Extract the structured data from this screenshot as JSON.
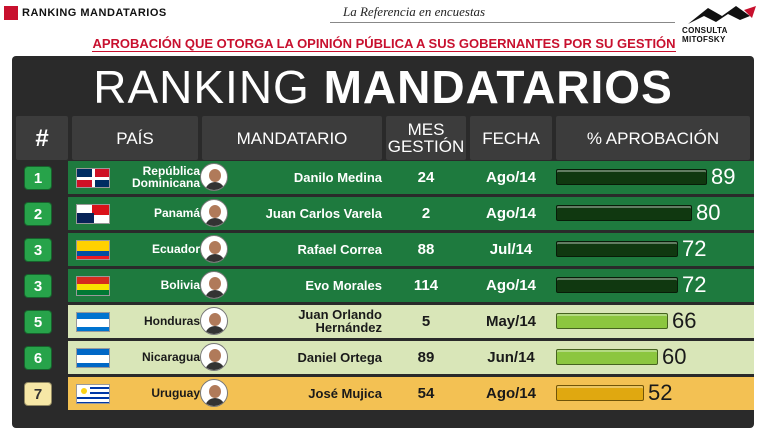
{
  "header": {
    "brand": "RANKING MANDATARIOS",
    "tagline": "La Referencia en encuestas",
    "logo_text": "CONSULTA MITOFSKY",
    "subtitle": "APROBACIÓN QUE OTORGA LA OPINIÓN PÚBLICA A SUS GOBERNANTES POR SU GESTIÓN"
  },
  "title": {
    "light": "RANKING",
    "bold": "MANDATARIOS"
  },
  "columns": {
    "rank": "#",
    "country": "PAÍS",
    "leader": "MANDATARIO",
    "tenure_line1": "MES",
    "tenure_line2": "GESTIÓN",
    "date": "FECHA",
    "approval": "% APROBACIÓN"
  },
  "colors": {
    "dark_green_row": "#1e7a3e",
    "light_green_row": "#d9e6b8",
    "orange_row": "#f3c153",
    "bar_dark": "#103810",
    "bar_lime": "#8cc63f",
    "bar_gold": "#e0a810"
  },
  "chart_data": {
    "type": "table",
    "xlabel": "% APROBACIÓN",
    "xlim": [
      0,
      100
    ],
    "rows": [
      {
        "rank": "1",
        "country": "República Dominicana",
        "leader": "Danilo Medina",
        "months": "24",
        "date": "Ago/14",
        "approval": 89,
        "tier": "dark"
      },
      {
        "rank": "2",
        "country": "Panamá",
        "leader": "Juan Carlos Varela",
        "months": "2",
        "date": "Ago/14",
        "approval": 80,
        "tier": "dark"
      },
      {
        "rank": "3",
        "country": "Ecuador",
        "leader": "Rafael Correa",
        "months": "88",
        "date": "Jul/14",
        "approval": 72,
        "tier": "dark"
      },
      {
        "rank": "3",
        "country": "Bolivia",
        "leader": "Evo Morales",
        "months": "114",
        "date": "Ago/14",
        "approval": 72,
        "tier": "dark"
      },
      {
        "rank": "5",
        "country": "Honduras",
        "leader": "Juan Orlando Hernández",
        "months": "5",
        "date": "May/14",
        "approval": 66,
        "tier": "light"
      },
      {
        "rank": "6",
        "country": "Nicaragua",
        "leader": "Daniel Ortega",
        "months": "89",
        "date": "Jun/14",
        "approval": 60,
        "tier": "light"
      },
      {
        "rank": "7",
        "country": "Uruguay",
        "leader": "José Mujica",
        "months": "54",
        "date": "Ago/14",
        "approval": 52,
        "tier": "orange"
      }
    ]
  }
}
